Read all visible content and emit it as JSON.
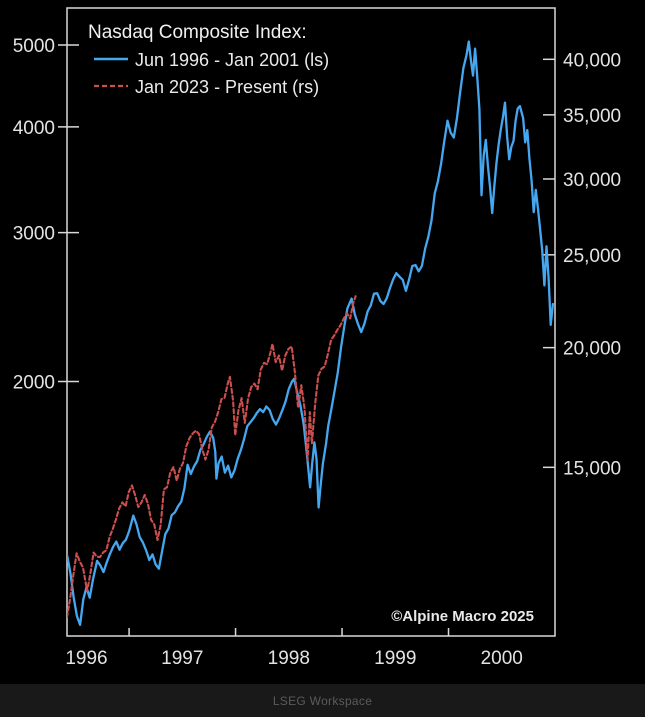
{
  "footer": {
    "workspace_label": "LSEG Workspace"
  },
  "chart_data": {
    "type": "line",
    "title": "Nasdaq Composite Index:",
    "annotation": "©Alpine Macro 2025",
    "grid": false,
    "legend_position": "top-left",
    "x_axis": {
      "span_years": 4.583,
      "ticks": [
        1997,
        1998,
        1999,
        2000
      ],
      "labels": [
        {
          "text": "1996",
          "t": 1996.6
        },
        {
          "text": "1997",
          "t": 1997.5
        },
        {
          "text": "1998",
          "t": 1998.5
        },
        {
          "text": "1999",
          "t": 1999.5
        },
        {
          "text": "2000",
          "t": 2000.5
        }
      ]
    },
    "left_axis": {
      "scale": "log",
      "range": [
        1000,
        5530
      ],
      "ticks": [
        {
          "value": 5000,
          "label": "5000"
        },
        {
          "value": 4000,
          "label": "4000"
        },
        {
          "value": 3000,
          "label": "3000"
        },
        {
          "value": 2000,
          "label": "2000"
        }
      ]
    },
    "right_axis": {
      "scale": "log",
      "range": [
        10000,
        45250
      ],
      "ticks": [
        {
          "value": 40000,
          "label": "40,000"
        },
        {
          "value": 35000,
          "label": "35,000"
        },
        {
          "value": 30000,
          "label": "30,000"
        },
        {
          "value": 25000,
          "label": "25,000"
        },
        {
          "value": 20000,
          "label": "20,000"
        },
        {
          "value": 15000,
          "label": "15,000"
        }
      ]
    },
    "series": [
      {
        "name": "Jun 1996 - Jan 2001 (ls)",
        "axis": "left",
        "style": "solid",
        "color": "#45a7f0",
        "x_start": 1996.417,
        "points": [
          [
            1996.42,
            1243
          ],
          [
            1996.45,
            1185
          ],
          [
            1996.48,
            1110
          ],
          [
            1996.51,
            1056
          ],
          [
            1996.54,
            1031
          ],
          [
            1996.57,
            1105
          ],
          [
            1996.6,
            1142
          ],
          [
            1996.63,
            1110
          ],
          [
            1996.66,
            1165
          ],
          [
            1996.7,
            1227
          ],
          [
            1996.73,
            1212
          ],
          [
            1996.76,
            1190
          ],
          [
            1996.79,
            1222
          ],
          [
            1996.82,
            1250
          ],
          [
            1996.85,
            1275
          ],
          [
            1996.88,
            1293
          ],
          [
            1996.91,
            1265
          ],
          [
            1996.94,
            1287
          ],
          [
            1996.97,
            1300
          ],
          [
            1997.0,
            1330
          ],
          [
            1997.04,
            1388
          ],
          [
            1997.07,
            1355
          ],
          [
            1997.1,
            1309
          ],
          [
            1997.13,
            1290
          ],
          [
            1997.16,
            1263
          ],
          [
            1997.19,
            1230
          ],
          [
            1997.22,
            1249
          ],
          [
            1997.25,
            1215
          ],
          [
            1997.28,
            1201
          ],
          [
            1997.31,
            1260
          ],
          [
            1997.34,
            1320
          ],
          [
            1997.37,
            1340
          ],
          [
            1997.4,
            1390
          ],
          [
            1997.43,
            1400
          ],
          [
            1997.46,
            1424
          ],
          [
            1997.49,
            1442
          ],
          [
            1997.52,
            1495
          ],
          [
            1997.55,
            1594
          ],
          [
            1997.58,
            1555
          ],
          [
            1997.61,
            1587
          ],
          [
            1997.64,
            1610
          ],
          [
            1997.67,
            1660
          ],
          [
            1997.7,
            1686
          ],
          [
            1997.73,
            1720
          ],
          [
            1997.76,
            1745
          ],
          [
            1997.79,
            1715
          ],
          [
            1997.81,
            1650
          ],
          [
            1997.82,
            1535
          ],
          [
            1997.84,
            1600
          ],
          [
            1997.87,
            1630
          ],
          [
            1997.9,
            1560
          ],
          [
            1997.93,
            1590
          ],
          [
            1997.96,
            1540
          ],
          [
            1997.99,
            1570
          ],
          [
            1998.02,
            1620
          ],
          [
            1998.05,
            1660
          ],
          [
            1998.08,
            1710
          ],
          [
            1998.11,
            1771
          ],
          [
            1998.14,
            1790
          ],
          [
            1998.17,
            1810
          ],
          [
            1998.2,
            1836
          ],
          [
            1998.23,
            1855
          ],
          [
            1998.26,
            1840
          ],
          [
            1998.29,
            1868
          ],
          [
            1998.32,
            1850
          ],
          [
            1998.35,
            1805
          ],
          [
            1998.38,
            1779
          ],
          [
            1998.41,
            1810
          ],
          [
            1998.44,
            1850
          ],
          [
            1998.47,
            1895
          ],
          [
            1998.5,
            1960
          ],
          [
            1998.53,
            2000
          ],
          [
            1998.55,
            2014
          ],
          [
            1998.58,
            1940
          ],
          [
            1998.61,
            1872
          ],
          [
            1998.64,
            1780
          ],
          [
            1998.67,
            1640
          ],
          [
            1998.7,
            1499
          ],
          [
            1998.72,
            1600
          ],
          [
            1998.74,
            1694
          ],
          [
            1998.76,
            1620
          ],
          [
            1998.78,
            1419
          ],
          [
            1998.8,
            1510
          ],
          [
            1998.82,
            1600
          ],
          [
            1998.85,
            1690
          ],
          [
            1998.87,
            1771
          ],
          [
            1998.9,
            1856
          ],
          [
            1998.93,
            1950
          ],
          [
            1998.96,
            2050
          ],
          [
            1998.99,
            2193
          ],
          [
            1999.02,
            2320
          ],
          [
            1999.05,
            2440
          ],
          [
            1999.09,
            2506
          ],
          [
            1999.12,
            2400
          ],
          [
            1999.15,
            2338
          ],
          [
            1999.18,
            2288
          ],
          [
            1999.21,
            2340
          ],
          [
            1999.24,
            2420
          ],
          [
            1999.27,
            2461
          ],
          [
            1999.3,
            2540
          ],
          [
            1999.33,
            2543
          ],
          [
            1999.36,
            2490
          ],
          [
            1999.39,
            2470
          ],
          [
            1999.42,
            2510
          ],
          [
            1999.45,
            2580
          ],
          [
            1999.48,
            2640
          ],
          [
            1999.51,
            2686
          ],
          [
            1999.54,
            2660
          ],
          [
            1999.57,
            2638
          ],
          [
            1999.6,
            2560
          ],
          [
            1999.63,
            2640
          ],
          [
            1999.66,
            2739
          ],
          [
            1999.69,
            2746
          ],
          [
            1999.72,
            2700
          ],
          [
            1999.75,
            2740
          ],
          [
            1999.78,
            2870
          ],
          [
            1999.81,
            2966
          ],
          [
            1999.84,
            3100
          ],
          [
            1999.87,
            3336
          ],
          [
            1999.9,
            3450
          ],
          [
            1999.93,
            3620
          ],
          [
            1999.96,
            3850
          ],
          [
            1999.99,
            4069
          ],
          [
            2000.02,
            3940
          ],
          [
            2000.05,
            3887
          ],
          [
            2000.08,
            4100
          ],
          [
            2000.11,
            4400
          ],
          [
            2000.14,
            4697
          ],
          [
            2000.17,
            4870
          ],
          [
            2000.19,
            5048
          ],
          [
            2000.21,
            4800
          ],
          [
            2000.23,
            4600
          ],
          [
            2000.25,
            4950
          ],
          [
            2000.27,
            4573
          ],
          [
            2000.29,
            4200
          ],
          [
            2000.31,
            3321
          ],
          [
            2000.33,
            3700
          ],
          [
            2000.35,
            3861
          ],
          [
            2000.37,
            3600
          ],
          [
            2000.39,
            3400
          ],
          [
            2000.41,
            3164
          ],
          [
            2000.43,
            3400
          ],
          [
            2000.45,
            3620
          ],
          [
            2000.47,
            3810
          ],
          [
            2000.49,
            3966
          ],
          [
            2000.51,
            4100
          ],
          [
            2000.53,
            4274
          ],
          [
            2000.55,
            3900
          ],
          [
            2000.57,
            3663
          ],
          [
            2000.59,
            3787
          ],
          [
            2000.61,
            3850
          ],
          [
            2000.63,
            4070
          ],
          [
            2000.65,
            4206
          ],
          [
            2000.67,
            4234
          ],
          [
            2000.7,
            4100
          ],
          [
            2000.72,
            3835
          ],
          [
            2000.74,
            3966
          ],
          [
            2000.76,
            3673
          ],
          [
            2000.78,
            3455
          ],
          [
            2000.8,
            3171
          ],
          [
            2000.82,
            3370
          ],
          [
            2000.84,
            3200
          ],
          [
            2000.86,
            3028
          ],
          [
            2000.88,
            2860
          ],
          [
            2000.9,
            2598
          ],
          [
            2000.92,
            2890
          ],
          [
            2000.94,
            2650
          ],
          [
            2000.96,
            2333
          ],
          [
            2000.98,
            2470
          ]
        ]
      },
      {
        "name": "Jan 2023 - Present (rs)",
        "axis": "right",
        "style": "dashed",
        "color": "#cc4f4f",
        "x_start": 2023.0,
        "points": [
          [
            2023.0,
            10466
          ],
          [
            2023.03,
            10950
          ],
          [
            2023.06,
            11585
          ],
          [
            2023.09,
            12200
          ],
          [
            2023.12,
            11960
          ],
          [
            2023.15,
            11790
          ],
          [
            2023.17,
            11455
          ],
          [
            2023.19,
            11139
          ],
          [
            2023.22,
            11630
          ],
          [
            2023.25,
            12222
          ],
          [
            2023.28,
            12100
          ],
          [
            2023.31,
            12087
          ],
          [
            2023.34,
            12226
          ],
          [
            2023.37,
            12290
          ],
          [
            2023.4,
            12690
          ],
          [
            2023.43,
            12935
          ],
          [
            2023.46,
            13240
          ],
          [
            2023.49,
            13591
          ],
          [
            2023.52,
            13788
          ],
          [
            2023.55,
            13660
          ],
          [
            2023.58,
            14138
          ],
          [
            2023.61,
            14358
          ],
          [
            2023.64,
            14032
          ],
          [
            2023.67,
            13631
          ],
          [
            2023.7,
            13790
          ],
          [
            2023.73,
            14034
          ],
          [
            2023.76,
            13748
          ],
          [
            2023.79,
            13219
          ],
          [
            2023.82,
            13072
          ],
          [
            2023.85,
            12595
          ],
          [
            2023.88,
            13061
          ],
          [
            2023.91,
            14226
          ],
          [
            2023.94,
            14305
          ],
          [
            2023.97,
            14814
          ],
          [
            2024.0,
            15011
          ],
          [
            2024.03,
            14524
          ],
          [
            2024.06,
            14944
          ],
          [
            2024.09,
            15164
          ],
          [
            2024.12,
            15776
          ],
          [
            2024.15,
            16092
          ],
          [
            2024.18,
            16265
          ],
          [
            2024.21,
            16379
          ],
          [
            2024.24,
            16248
          ],
          [
            2024.27,
            15683
          ],
          [
            2024.3,
            15282
          ],
          [
            2024.33,
            15658
          ],
          [
            2024.36,
            16511
          ],
          [
            2024.39,
            16735
          ],
          [
            2024.42,
            17133
          ],
          [
            2024.45,
            17667
          ],
          [
            2024.48,
            17733
          ],
          [
            2024.51,
            18353
          ],
          [
            2024.53,
            18647
          ],
          [
            2024.56,
            17599
          ],
          [
            2024.58,
            16200
          ],
          [
            2024.61,
            17187
          ],
          [
            2024.64,
            17714
          ],
          [
            2024.67,
            16691
          ],
          [
            2024.7,
            17684
          ],
          [
            2024.73,
            18189
          ],
          [
            2024.76,
            18343
          ],
          [
            2024.79,
            18095
          ],
          [
            2024.82,
            18983
          ],
          [
            2024.85,
            19281
          ],
          [
            2024.88,
            19218
          ],
          [
            2024.91,
            19765
          ],
          [
            2024.93,
            20174
          ],
          [
            2024.96,
            19311
          ],
          [
            2024.99,
            19621
          ],
          [
            2025.02,
            18924
          ],
          [
            2025.05,
            19627
          ],
          [
            2025.08,
            19945
          ],
          [
            2025.11,
            20056
          ],
          [
            2025.14,
            18847
          ],
          [
            2025.17,
            17303
          ],
          [
            2025.2,
            18272
          ],
          [
            2025.23,
            17299
          ],
          [
            2025.26,
            15268
          ],
          [
            2025.28,
            17125
          ],
          [
            2025.3,
            15871
          ],
          [
            2025.33,
            17446
          ],
          [
            2025.36,
            18700
          ],
          [
            2025.39,
            19011
          ],
          [
            2025.42,
            19114
          ],
          [
            2025.45,
            19701
          ],
          [
            2025.48,
            20370
          ],
          [
            2025.51,
            20600
          ],
          [
            2025.54,
            20886
          ],
          [
            2025.57,
            21122
          ],
          [
            2025.6,
            21450
          ],
          [
            2025.63,
            21713
          ],
          [
            2025.66,
            21455
          ],
          [
            2025.69,
            22300
          ],
          [
            2025.71,
            22631
          ]
        ]
      }
    ]
  }
}
